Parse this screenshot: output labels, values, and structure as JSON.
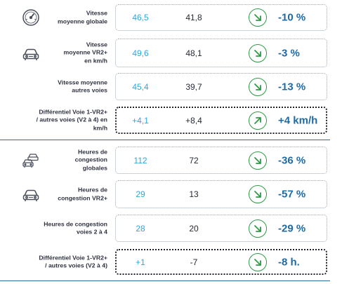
{
  "colors": {
    "value_previous": "#2fa8d8",
    "value_current": "#262a33",
    "delta": "#1f6aa3",
    "trend_arrow": "#2f9a45",
    "separator": "#2c6e9b"
  },
  "speed_rows": [
    {
      "label": "Vitesse\nmoyenne globale",
      "icon": "speedometer-icon",
      "previous": "46,5",
      "current": "41,8",
      "trend": "down-right-arrow-icon",
      "delta": "-10 %"
    },
    {
      "label": "Vitesse\nmoyenne VR2+\nen km/h",
      "icon": "car-icon",
      "previous": "49,6",
      "current": "48,1",
      "trend": "down-right-arrow-icon",
      "delta": "-3 %"
    },
    {
      "label": "Vitesse moyenne\nautres voies",
      "icon": "",
      "previous": "45,4",
      "current": "39,7",
      "trend": "down-right-arrow-icon",
      "delta": "-13 %"
    },
    {
      "label": "Différentiel Voie 1-VR2+\n/ autres voies (V2 à 4) en\nkm/h",
      "icon": "",
      "previous": "+4,1",
      "current": "+8,4",
      "trend": "up-right-arrow-icon",
      "delta": "+4 km/h",
      "highlighted": true
    }
  ],
  "congestion_rows": [
    {
      "label": "Heures de\ncongestion\nglobales",
      "icon": "traffic-jam-icon",
      "previous": "112",
      "current": "72",
      "trend": "down-right-arrow-icon",
      "delta": "-36 %"
    },
    {
      "label": "Heures de\ncongestion VR2+",
      "icon": "car-icon",
      "previous": "29",
      "current": "13",
      "trend": "down-right-arrow-icon",
      "delta": "-57 %"
    },
    {
      "label": "Heures de congestion\nvoies 2 à 4",
      "icon": "",
      "previous": "28",
      "current": "20",
      "trend": "down-right-arrow-icon",
      "delta": "-29 %"
    },
    {
      "label": "Différentiel Voie 1-VR2+\n/ autres voies (V2 à 4)",
      "icon": "",
      "previous": "+1",
      "current": "-7",
      "trend": "down-right-arrow-icon",
      "delta": "-8 h.",
      "highlighted": true
    }
  ]
}
